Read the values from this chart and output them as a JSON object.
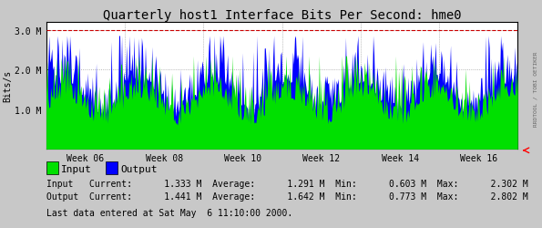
{
  "title": "Quarterly host1 Interface Bits Per Second: hme0",
  "ylabel": "Bits/s",
  "bg_color": "#c8c8c8",
  "plot_bg_color": "#ffffff",
  "grid_color": "#a0a0a0",
  "input_color": "#00e000",
  "output_color": "#0000ff",
  "ylim": [
    0,
    3200000
  ],
  "yticks": [
    1000000,
    2000000,
    3000000
  ],
  "ytick_labels": [
    "1.0 M",
    "2.0 M",
    "3.0 M"
  ],
  "xtick_labels": [
    "Week 06",
    "Week 08",
    "Week 10",
    "Week 12",
    "Week 14",
    "Week 16"
  ],
  "legend_input": "Input",
  "legend_output": "Output",
  "stats_line1": "Input   Current:      1.333 M  Average:      1.291 M  Min:      0.603 M  Max:      2.302 M",
  "stats_line2": "Output  Current:      1.441 M  Average:      1.642 M  Min:      0.773 M  Max:      2.802 M",
  "footer": "Last data entered at Sat May  6 11:10:00 2000.",
  "rrdtool_label": "RRDTOOL / TOBI OETIKER",
  "num_points": 500,
  "title_fontsize": 10,
  "axis_fontsize": 7,
  "stats_fontsize": 7,
  "legend_fontsize": 8
}
